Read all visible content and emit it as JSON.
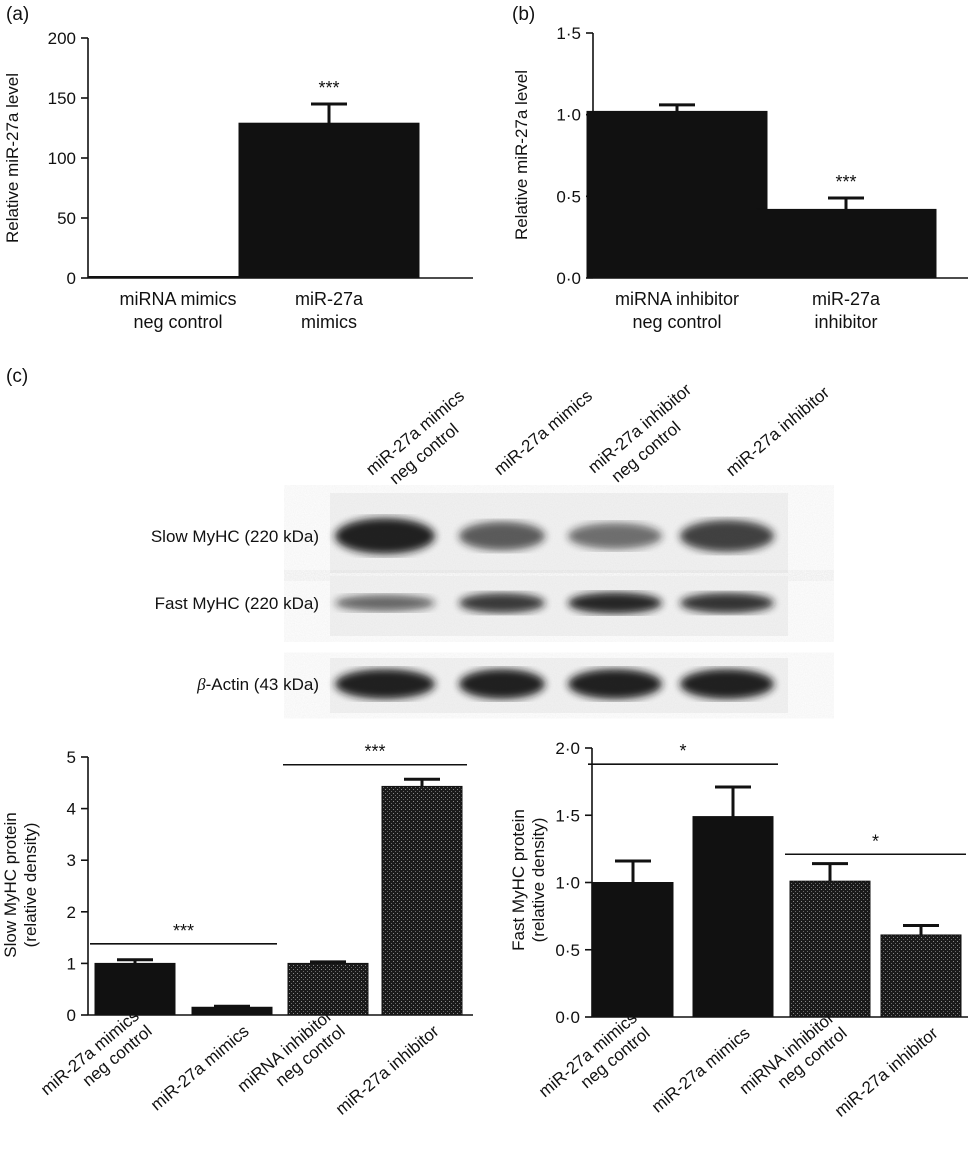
{
  "colors": {
    "bar_solid": "#111111",
    "bar_dotted": "#2a2a2a",
    "axis": "#111111",
    "blot_bg": "#f3f3f3",
    "band": "#151515"
  },
  "panel_a": {
    "label": "(a)",
    "chart_data": {
      "type": "bar",
      "categories": [
        [
          "miRNA mimics",
          "neg control"
        ],
        [
          "miR-27a",
          "mimics"
        ]
      ],
      "values": [
        1,
        129
      ],
      "errors": [
        0,
        16
      ],
      "significance": [
        "",
        "***"
      ],
      "ylabel": "Relative miR-27a level",
      "ylim": [
        0,
        200
      ],
      "yticks": [
        "0",
        "50",
        "100",
        "150",
        "200"
      ],
      "ytick_values": [
        0,
        50,
        100,
        150,
        200
      ]
    }
  },
  "panel_b": {
    "label": "(b)",
    "chart_data": {
      "type": "bar",
      "categories": [
        [
          "miRNA inhibitor",
          "neg control"
        ],
        [
          "miR-27a",
          "inhibitor"
        ]
      ],
      "values": [
        1.02,
        0.42
      ],
      "errors": [
        0.04,
        0.07
      ],
      "significance": [
        "",
        "***"
      ],
      "ylabel": "Relative miR-27a level",
      "ylim": [
        0,
        1.5
      ],
      "yticks": [
        "0·0",
        "0·5",
        "1·0",
        "1·5"
      ],
      "ytick_values": [
        0,
        0.5,
        1.0,
        1.5
      ]
    }
  },
  "panel_c": {
    "label": "(c)",
    "blot": {
      "lanes": [
        [
          "miR-27a mimics",
          "neg control"
        ],
        [
          "miR-27a mimics"
        ],
        [
          "miR-27a inhibitor",
          "neg control"
        ],
        [
          "miR-27a inhibitor"
        ]
      ],
      "rows": [
        {
          "label": "Slow MyHC (220 kDa)",
          "intensity": [
            1.0,
            0.55,
            0.4,
            0.75
          ]
        },
        {
          "label": "Fast MyHC (220 kDa)",
          "intensity": [
            0.45,
            0.8,
            0.95,
            0.85
          ]
        },
        {
          "label_greek": "β",
          "label": "-Actin (43 kDa)",
          "intensity": [
            1.0,
            1.0,
            1.0,
            1.0
          ]
        }
      ]
    },
    "charts": [
      {
        "type": "bar",
        "categories": [
          [
            "miR-27a mimics",
            "neg control"
          ],
          [
            "miR-27a mimics"
          ],
          [
            "miRNA inhibitor",
            "neg control"
          ],
          [
            "miR-27a inhibitor"
          ]
        ],
        "values": [
          1.0,
          0.15,
          1.0,
          4.43
        ],
        "errors": [
          0.07,
          0.02,
          0.03,
          0.14
        ],
        "ylabel": [
          "Slow MyHC protein",
          "(relative density)"
        ],
        "ylim": [
          0,
          5
        ],
        "yticks": [
          "0",
          "1",
          "2",
          "3",
          "4",
          "5"
        ],
        "ytick_values": [
          0,
          1,
          2,
          3,
          4,
          5
        ],
        "significance": [
          {
            "from": 0,
            "to": 1,
            "label": "***",
            "y": 1.38
          },
          {
            "from": 2,
            "to": 3,
            "label": "***",
            "y": 4.85
          }
        ]
      },
      {
        "type": "bar",
        "categories": [
          [
            "miR-27a mimics",
            "neg control"
          ],
          [
            "miR-27a mimics"
          ],
          [
            "miRNA inhibitor",
            "neg control"
          ],
          [
            "miR-27a inhibitor"
          ]
        ],
        "values": [
          1.0,
          1.49,
          1.01,
          0.61
        ],
        "errors": [
          0.16,
          0.22,
          0.13,
          0.07
        ],
        "ylabel": [
          "Fast MyHC protein",
          "(relative density)"
        ],
        "ylim": [
          0,
          2.0
        ],
        "yticks": [
          "0·0",
          "0·5",
          "1·0",
          "1·5",
          "2·0"
        ],
        "ytick_values": [
          0,
          0.5,
          1.0,
          1.5,
          2.0
        ],
        "significance": [
          {
            "from": 0,
            "to": 1,
            "label": "*",
            "y": 1.88
          },
          {
            "from": 2,
            "to": 3,
            "label": "*",
            "y": 1.21
          }
        ]
      }
    ]
  }
}
